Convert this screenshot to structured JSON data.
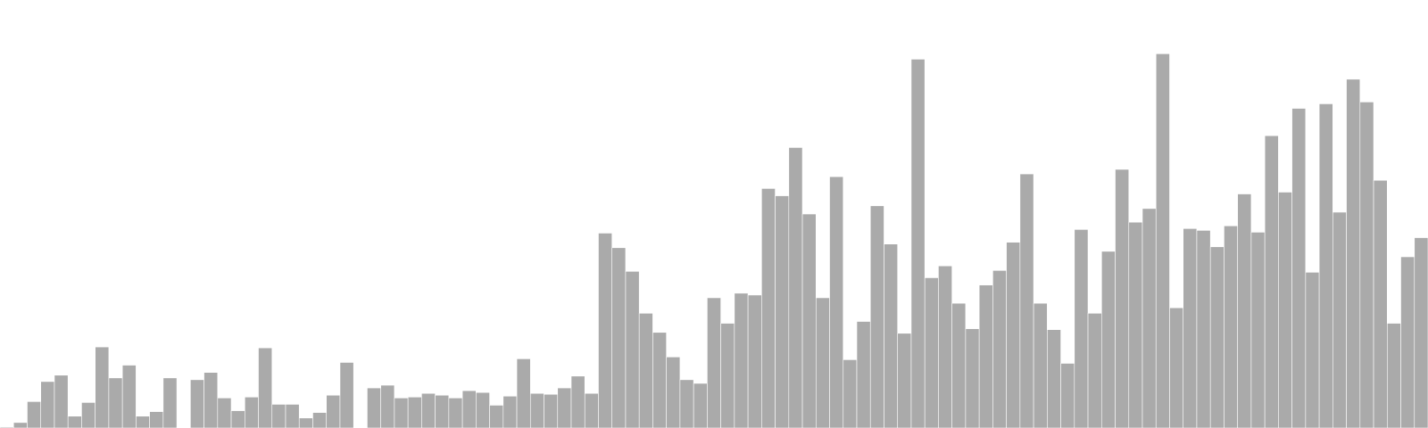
{
  "chart_data": {
    "type": "bar",
    "title": "",
    "xlabel": "",
    "ylabel": "",
    "grid": false,
    "legend": "none",
    "bar_color": "#aaaaaa",
    "bar_edge_color": "#ffffff",
    "background": "#ffffff",
    "ylim": [
      0,
      470
    ],
    "values": [
      1,
      6,
      29,
      51,
      58,
      13,
      28,
      89,
      55,
      69,
      13,
      18,
      55,
      0,
      53,
      61,
      33,
      19,
      34,
      88,
      26,
      26,
      11,
      17,
      36,
      72,
      0,
      44,
      47,
      33,
      34,
      38,
      36,
      33,
      41,
      39,
      25,
      35,
      76,
      38,
      37,
      44,
      57,
      38,
      214,
      198,
      172,
      126,
      105,
      78,
      53,
      49,
      143,
      115,
      148,
      146,
      263,
      255,
      308,
      235,
      143,
      276,
      75,
      117,
      244,
      202,
      104,
      405,
      165,
      178,
      137,
      109,
      157,
      173,
      204,
      279,
      137,
      108,
      71,
      218,
      126,
      194,
      284,
      226,
      241,
      411,
      132,
      219,
      217,
      199,
      222,
      257,
      215,
      321,
      259,
      351,
      171,
      356,
      237,
      383,
      358,
      272,
      115,
      188,
      209
    ],
    "gaps": [
      13,
      26
    ]
  }
}
